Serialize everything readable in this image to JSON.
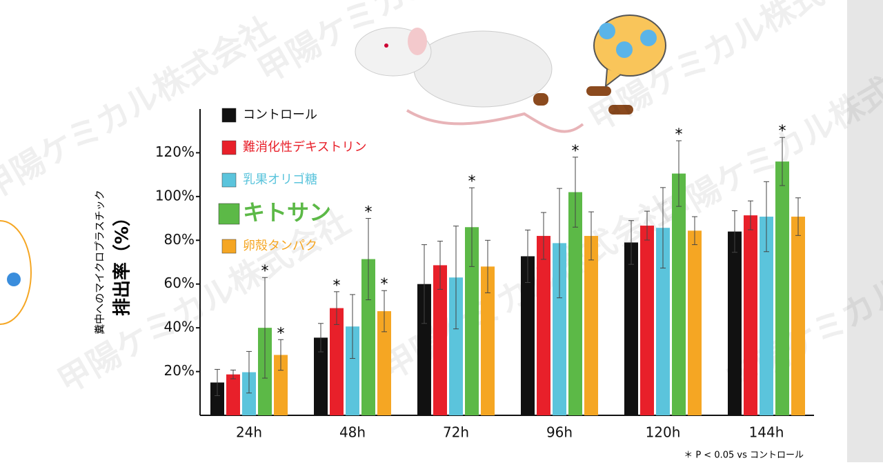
{
  "chart_data": {
    "type": "bar",
    "y_label_lines": [
      "糞中へのマイクロプラスチック",
      "排出率（%）"
    ],
    "categories": [
      "24h",
      "48h",
      "72h",
      "96h",
      "120h",
      "144h"
    ],
    "ylim": [
      0,
      140
    ],
    "yticks": [
      {
        "value": 20,
        "label": "20%"
      },
      {
        "value": 40,
        "label": "40%"
      },
      {
        "value": 60,
        "label": "60%"
      },
      {
        "value": 80,
        "label": "80%"
      },
      {
        "value": 100,
        "label": "100%"
      },
      {
        "value": 120,
        "label": "120%"
      }
    ],
    "series": [
      {
        "name": "コントロール",
        "color": "#111111",
        "values": [
          15,
          35.5,
          60,
          72.7,
          79,
          84
        ],
        "errors": [
          6,
          6.5,
          18,
          12,
          10,
          9.5
        ],
        "annotations": [
          null,
          null,
          null,
          null,
          null,
          null
        ]
      },
      {
        "name": "難消化性デキストリン",
        "color": "#e8202a",
        "values": [
          18.7,
          49,
          68.6,
          82,
          86.7,
          91.4
        ],
        "errors": [
          2,
          7.5,
          11,
          10.7,
          6.6,
          6.6
        ],
        "annotations": [
          null,
          "*",
          null,
          null,
          null,
          null
        ]
      },
      {
        "name": "乳果オリゴ糖",
        "color": "#5bc4dc",
        "values": [
          19.7,
          40.6,
          63,
          78.7,
          85.7,
          90.8
        ],
        "errors": [
          9.5,
          14.6,
          23.5,
          25,
          18.4,
          16
        ],
        "annotations": [
          null,
          null,
          null,
          null,
          null,
          null
        ]
      },
      {
        "name": "キトサン",
        "color": "#5cb947",
        "values": [
          40,
          71.4,
          86,
          102,
          110.5,
          116
        ],
        "errors": [
          23,
          18.6,
          18,
          16,
          15,
          11
        ],
        "annotations": [
          "*",
          "*",
          "*",
          "*",
          "*",
          "*"
        ]
      },
      {
        "name": "卵殻タンパク",
        "color": "#f5a623",
        "values": [
          27.6,
          47.6,
          68,
          82,
          84.4,
          90.8
        ],
        "errors": [
          7,
          9.4,
          12,
          11,
          6.4,
          8.6
        ],
        "annotations": [
          "*",
          "*",
          null,
          null,
          null,
          null
        ]
      }
    ],
    "footnote": "＊ P < 0.05 vs コントロール",
    "watermark": "甲陽ケミカル株式会社"
  }
}
